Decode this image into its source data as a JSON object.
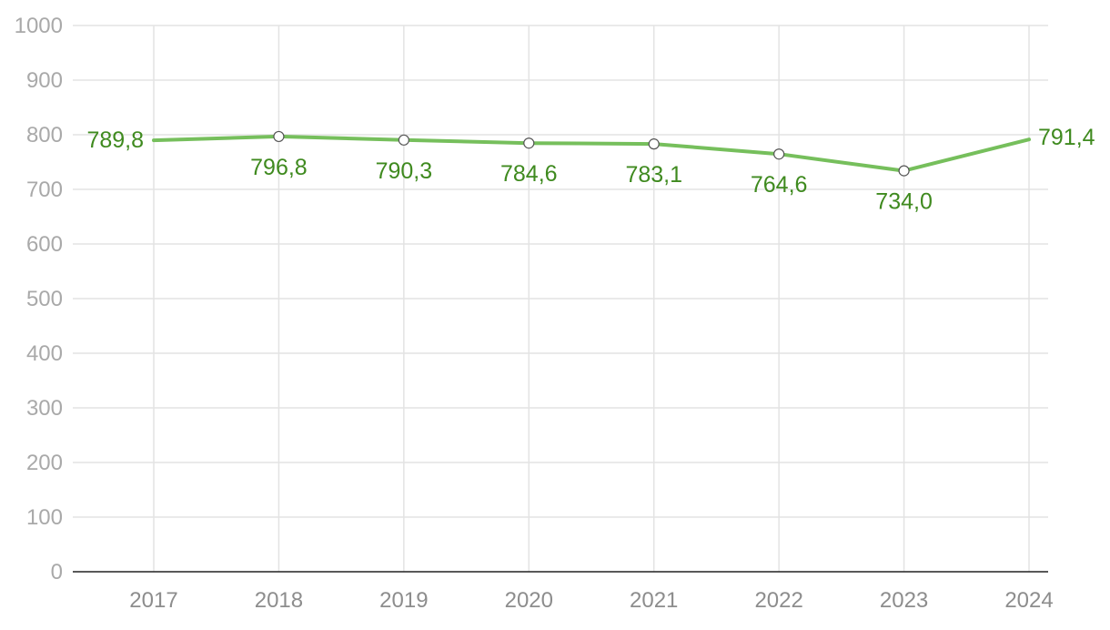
{
  "chart_data": {
    "type": "line",
    "title": "",
    "xlabel": "",
    "ylabel": "",
    "x": [
      "2017",
      "2018",
      "2019",
      "2020",
      "2021",
      "2022",
      "2023",
      "2024"
    ],
    "series": [
      {
        "values": [
          789.8,
          796.8,
          790.3,
          784.6,
          783.1,
          764.6,
          734.0,
          791.4
        ],
        "labels": [
          "789,8",
          "796,8",
          "790,3",
          "784,6",
          "783,1",
          "764,6",
          "734,0",
          "791,4"
        ]
      }
    ],
    "ylim": [
      0,
      1000
    ],
    "yticks": [
      "0",
      "100",
      "200",
      "300",
      "400",
      "500",
      "600",
      "700",
      "800",
      "900",
      "1000"
    ],
    "grid": true,
    "legend": "none",
    "colors": {
      "line": "#76bf5c",
      "label": "#3f8a1f",
      "point_stroke": "#555555"
    }
  }
}
